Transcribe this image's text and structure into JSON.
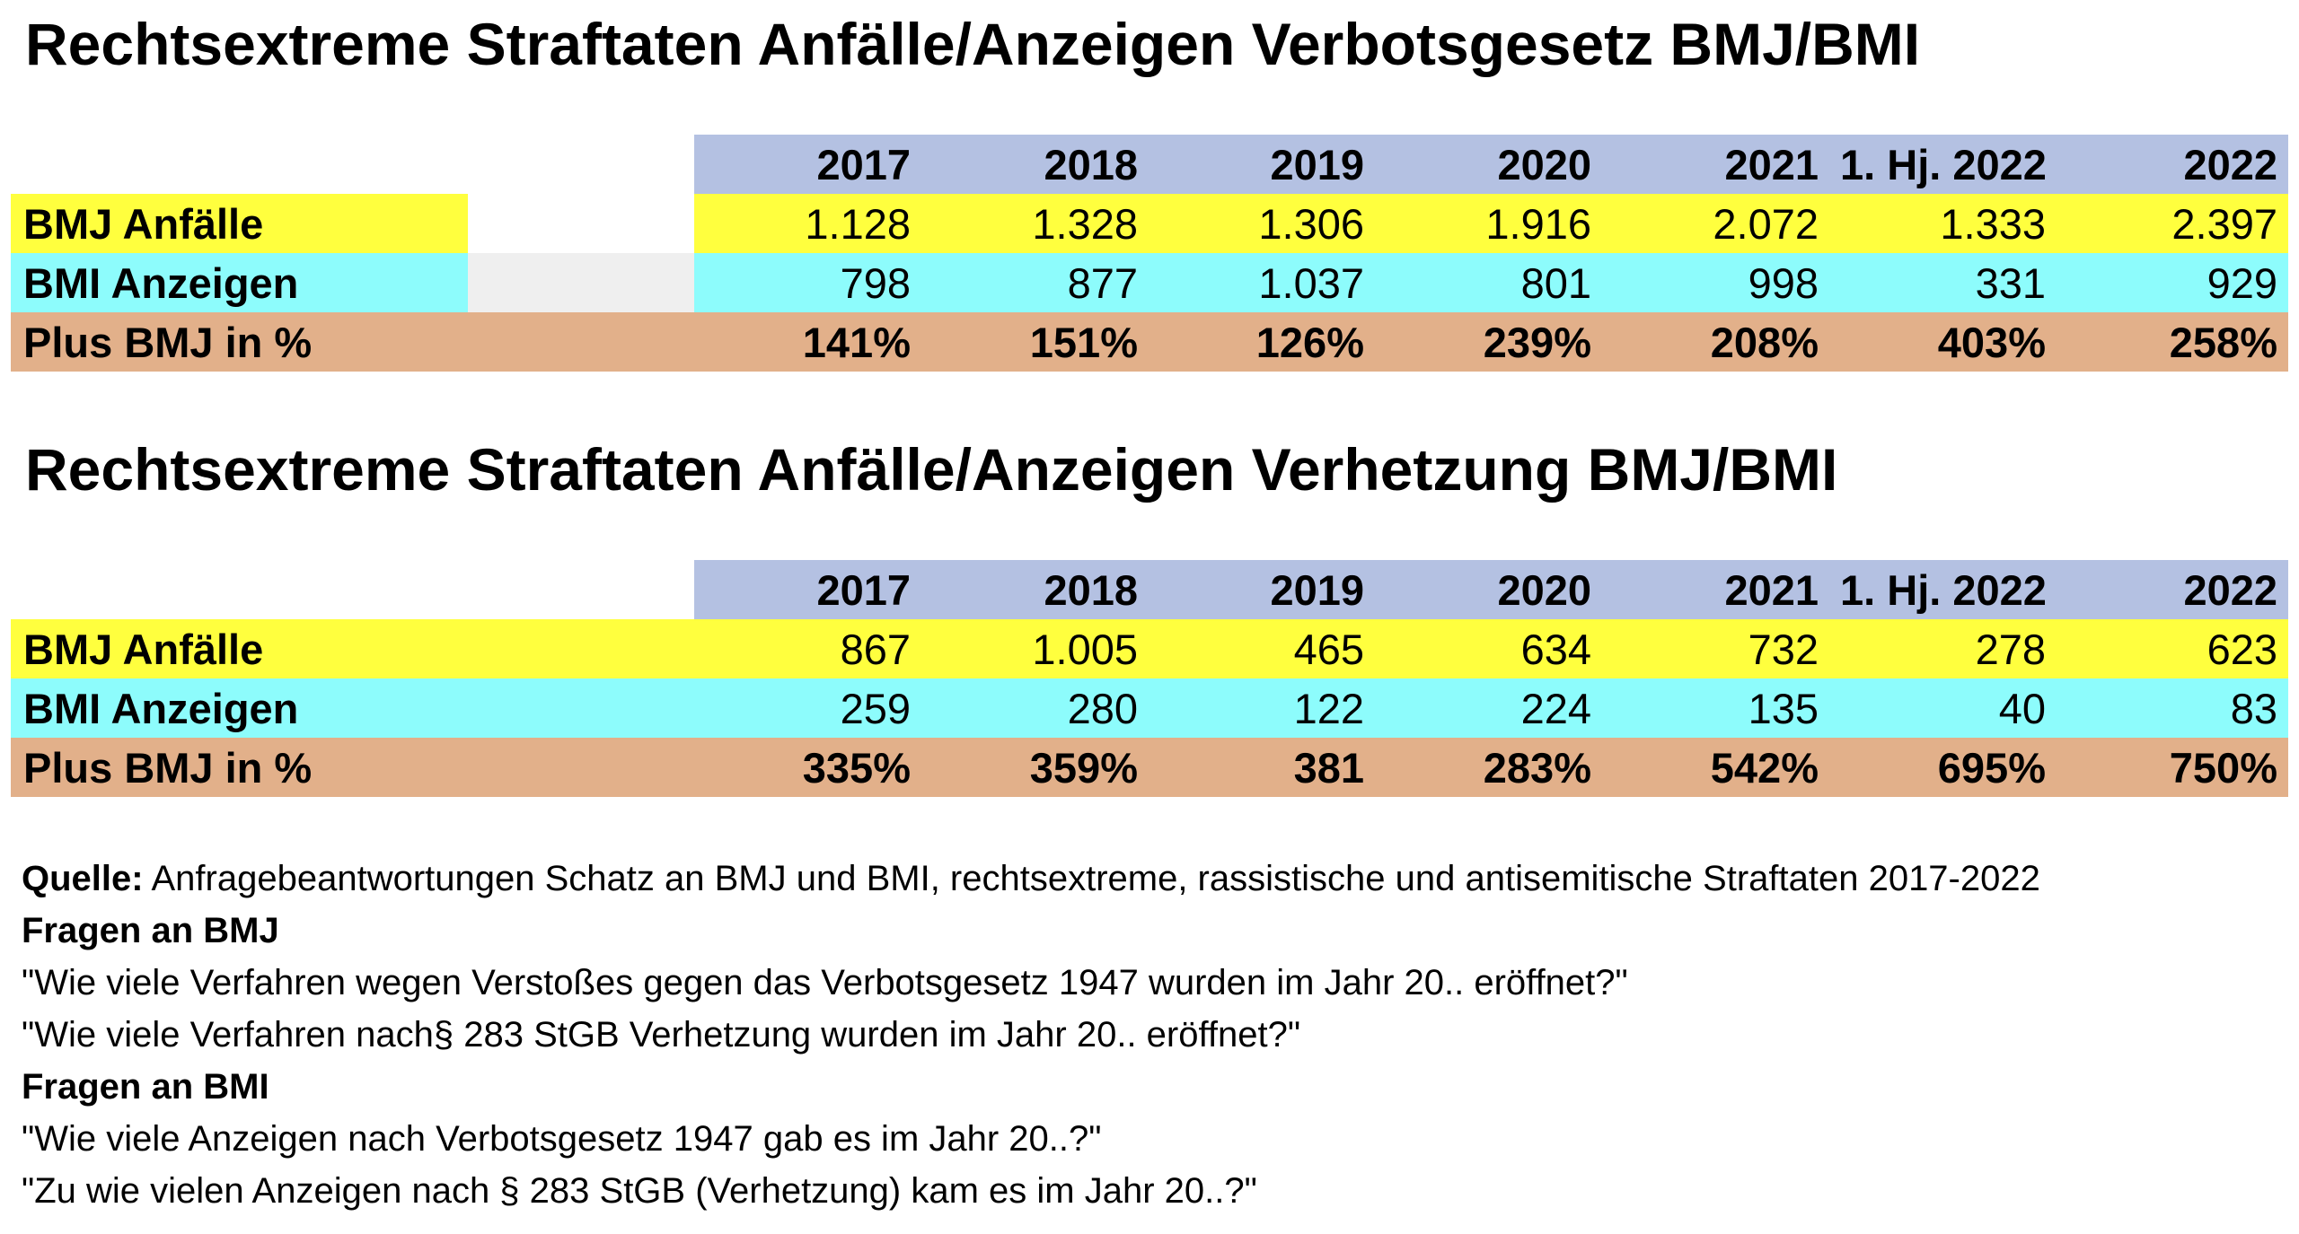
{
  "table1": {
    "title": "Rechtsextreme Straftaten Anfälle/Anzeigen Verbotsgesetz BMJ/BMI",
    "headers": [
      "2017",
      "2018",
      "2019",
      "2020",
      "2021",
      "1. Hj. 2022",
      "2022"
    ],
    "rows": [
      {
        "label": "BMJ  Anfälle",
        "values": [
          "1.128",
          "1.328",
          "1.306",
          "1.916",
          "2.072",
          "1.333",
          "2.397"
        ],
        "color": "#ffff3e"
      },
      {
        "label": "BMI Anzeigen",
        "values": [
          "798",
          "877",
          "1.037",
          "801",
          "998",
          "331",
          "929"
        ],
        "color": "#8dfcfc"
      },
      {
        "label": "Plus BMJ in %",
        "values": [
          "141%",
          "151%",
          "126%",
          "239%",
          "208%",
          "403%",
          "258%"
        ],
        "color": "#e2b08a"
      }
    ],
    "header_color": "#b4c1e2"
  },
  "table2": {
    "title": "Rechtsextreme Straftaten Anfälle/Anzeigen Verhetzung BMJ/BMI",
    "headers": [
      "2017",
      "2018",
      "2019",
      "2020",
      "2021",
      "1. Hj. 2022",
      "2022"
    ],
    "rows": [
      {
        "label": "BMJ Anfälle",
        "values": [
          "867",
          "1.005",
          "465",
          "634",
          "732",
          "278",
          "623"
        ],
        "color": "#ffff3e"
      },
      {
        "label": "BMI Anzeigen",
        "values": [
          "259",
          "280",
          "122",
          "224",
          "135",
          "40",
          "83"
        ],
        "color": "#8dfcfc"
      },
      {
        "label": "Plus BMJ in %",
        "values": [
          "335%",
          "359%",
          "381",
          "283%",
          "542%",
          "695%",
          "750%"
        ],
        "color": "#e2b08a"
      }
    ],
    "header_color": "#b4c1e2"
  },
  "notes": {
    "source_label": "Quelle:",
    "source_text": " Anfragebeantwortungen Schatz an BMJ und BMI, rechtsextreme, rassistische und antisemitische Straftaten 2017-2022",
    "bmj_heading": "Fragen an BMJ",
    "bmj_q1": "\"Wie viele Verfahren wegen Verstoßes gegen das Verbotsgesetz 1947 wurden im Jahr 20.. eröffnet?\"",
    "bmj_q2": "\"Wie viele Verfahren nach§ 283 StGB Verhetzung wurden im Jahr 20.. eröffnet?\"",
    "bmi_heading": "Fragen an BMI",
    "bmi_q1": "\"Wie viele Anzeigen nach Verbotsgesetz 1947 gab es im Jahr 20..?\"",
    "bmi_q2": "\"Zu wie vielen Anzeigen nach § 283 StGB (Verhetzung) kam es im Jahr 20..?\""
  }
}
